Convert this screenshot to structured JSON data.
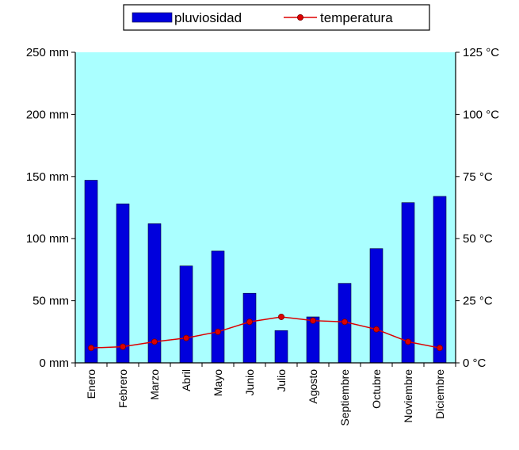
{
  "chart_data": {
    "type": "bar",
    "categories": [
      "Enero",
      "Febrero",
      "Marzo",
      "Abril",
      "Mayo",
      "Junio",
      "Julio",
      "Agosto",
      "Septiembre",
      "Octubre",
      "Noviembre",
      "Diciembre"
    ],
    "series": [
      {
        "name": "pluviosidad",
        "type": "bar",
        "axis": "left",
        "values": [
          147,
          128,
          112,
          78,
          90,
          56,
          26,
          37,
          64,
          92,
          129,
          134
        ]
      },
      {
        "name": "temperatura",
        "type": "line",
        "axis": "right",
        "values": [
          6,
          6.5,
          8.5,
          10,
          12.5,
          16.5,
          18.5,
          17,
          16.5,
          13.5,
          8.5,
          6
        ]
      }
    ],
    "y_left": {
      "ylim": [
        0,
        250
      ],
      "ticks": [
        "0 mm",
        "50 mm",
        "100 mm",
        "150 mm",
        "200 mm",
        "250 mm"
      ]
    },
    "y_right": {
      "ylim": [
        0,
        125
      ],
      "ticks": [
        "0 °C",
        "25 °C",
        "50 °C",
        "75 °C",
        "100 °C",
        "125 °C"
      ]
    },
    "grid": false,
    "legend": "top-center",
    "colors": {
      "plot_bg": "#aaffff",
      "bar": "#0000dd",
      "line": "#dd0000"
    }
  }
}
